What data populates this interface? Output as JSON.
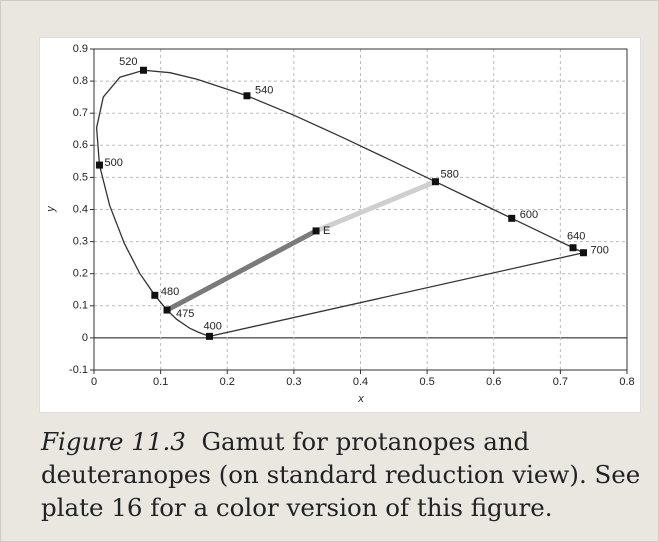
{
  "chart_data": {
    "type": "line",
    "xlabel": "x",
    "ylabel": "y",
    "xlim": [
      0,
      0.8
    ],
    "ylim": [
      -0.1,
      0.9
    ],
    "xticks": [
      0,
      0.1,
      0.2,
      0.3,
      0.4,
      0.5,
      0.6,
      0.7,
      0.8
    ],
    "yticks": [
      -0.1,
      0,
      0.1,
      0.2,
      0.3,
      0.4,
      0.5,
      0.6,
      0.7,
      0.8,
      0.9
    ],
    "grid": true,
    "series": [
      {
        "color": "#333333",
        "x": [
          0.1733,
          0.1566,
          0.144,
          0.1241,
          0.1096,
          0.0913,
          0.0687,
          0.0454,
          0.0235,
          0.0082,
          0.0039,
          0.0139,
          0.0389,
          0.0743,
          0.1142,
          0.1547,
          0.2296,
          0.3016,
          0.3731,
          0.4441,
          0.5125,
          0.5752,
          0.627,
          0.6915,
          0.719,
          0.7347,
          0.1733
        ],
        "y": [
          0.0048,
          0.0177,
          0.0297,
          0.0578,
          0.0868,
          0.1327,
          0.2007,
          0.295,
          0.4127,
          0.5384,
          0.6548,
          0.7502,
          0.812,
          0.8338,
          0.8262,
          0.8059,
          0.7543,
          0.6923,
          0.6245,
          0.5547,
          0.4866,
          0.4242,
          0.3725,
          0.3083,
          0.2809,
          0.2653,
          0.0048
        ]
      }
    ],
    "gamut": [
      {
        "color": "#7a7a7a",
        "x": [
          0.1096,
          0.3333
        ],
        "y": [
          0.0868,
          0.3333
        ]
      },
      {
        "color": "#cfcfcf",
        "x": [
          0.3333,
          0.5125
        ],
        "y": [
          0.3333,
          0.4866
        ]
      }
    ],
    "points": {
      "labels": [
        "520",
        "540",
        "580",
        "600",
        "640",
        "700",
        "500",
        "480",
        "475",
        "400",
        "E"
      ],
      "x": [
        0.0743,
        0.2296,
        0.5125,
        0.627,
        0.719,
        0.7347,
        0.0082,
        0.0913,
        0.1096,
        0.1733,
        0.3333
      ],
      "y": [
        0.8338,
        0.7543,
        0.4866,
        0.3725,
        0.2809,
        0.2653,
        0.5384,
        0.1327,
        0.0868,
        0.0048,
        0.3333
      ]
    }
  },
  "caption": {
    "label": "Figure 11.3",
    "text": "Gamut for protanopes and deuteranopes (on standard reduction view). See plate 16 for a color version of this figure."
  }
}
